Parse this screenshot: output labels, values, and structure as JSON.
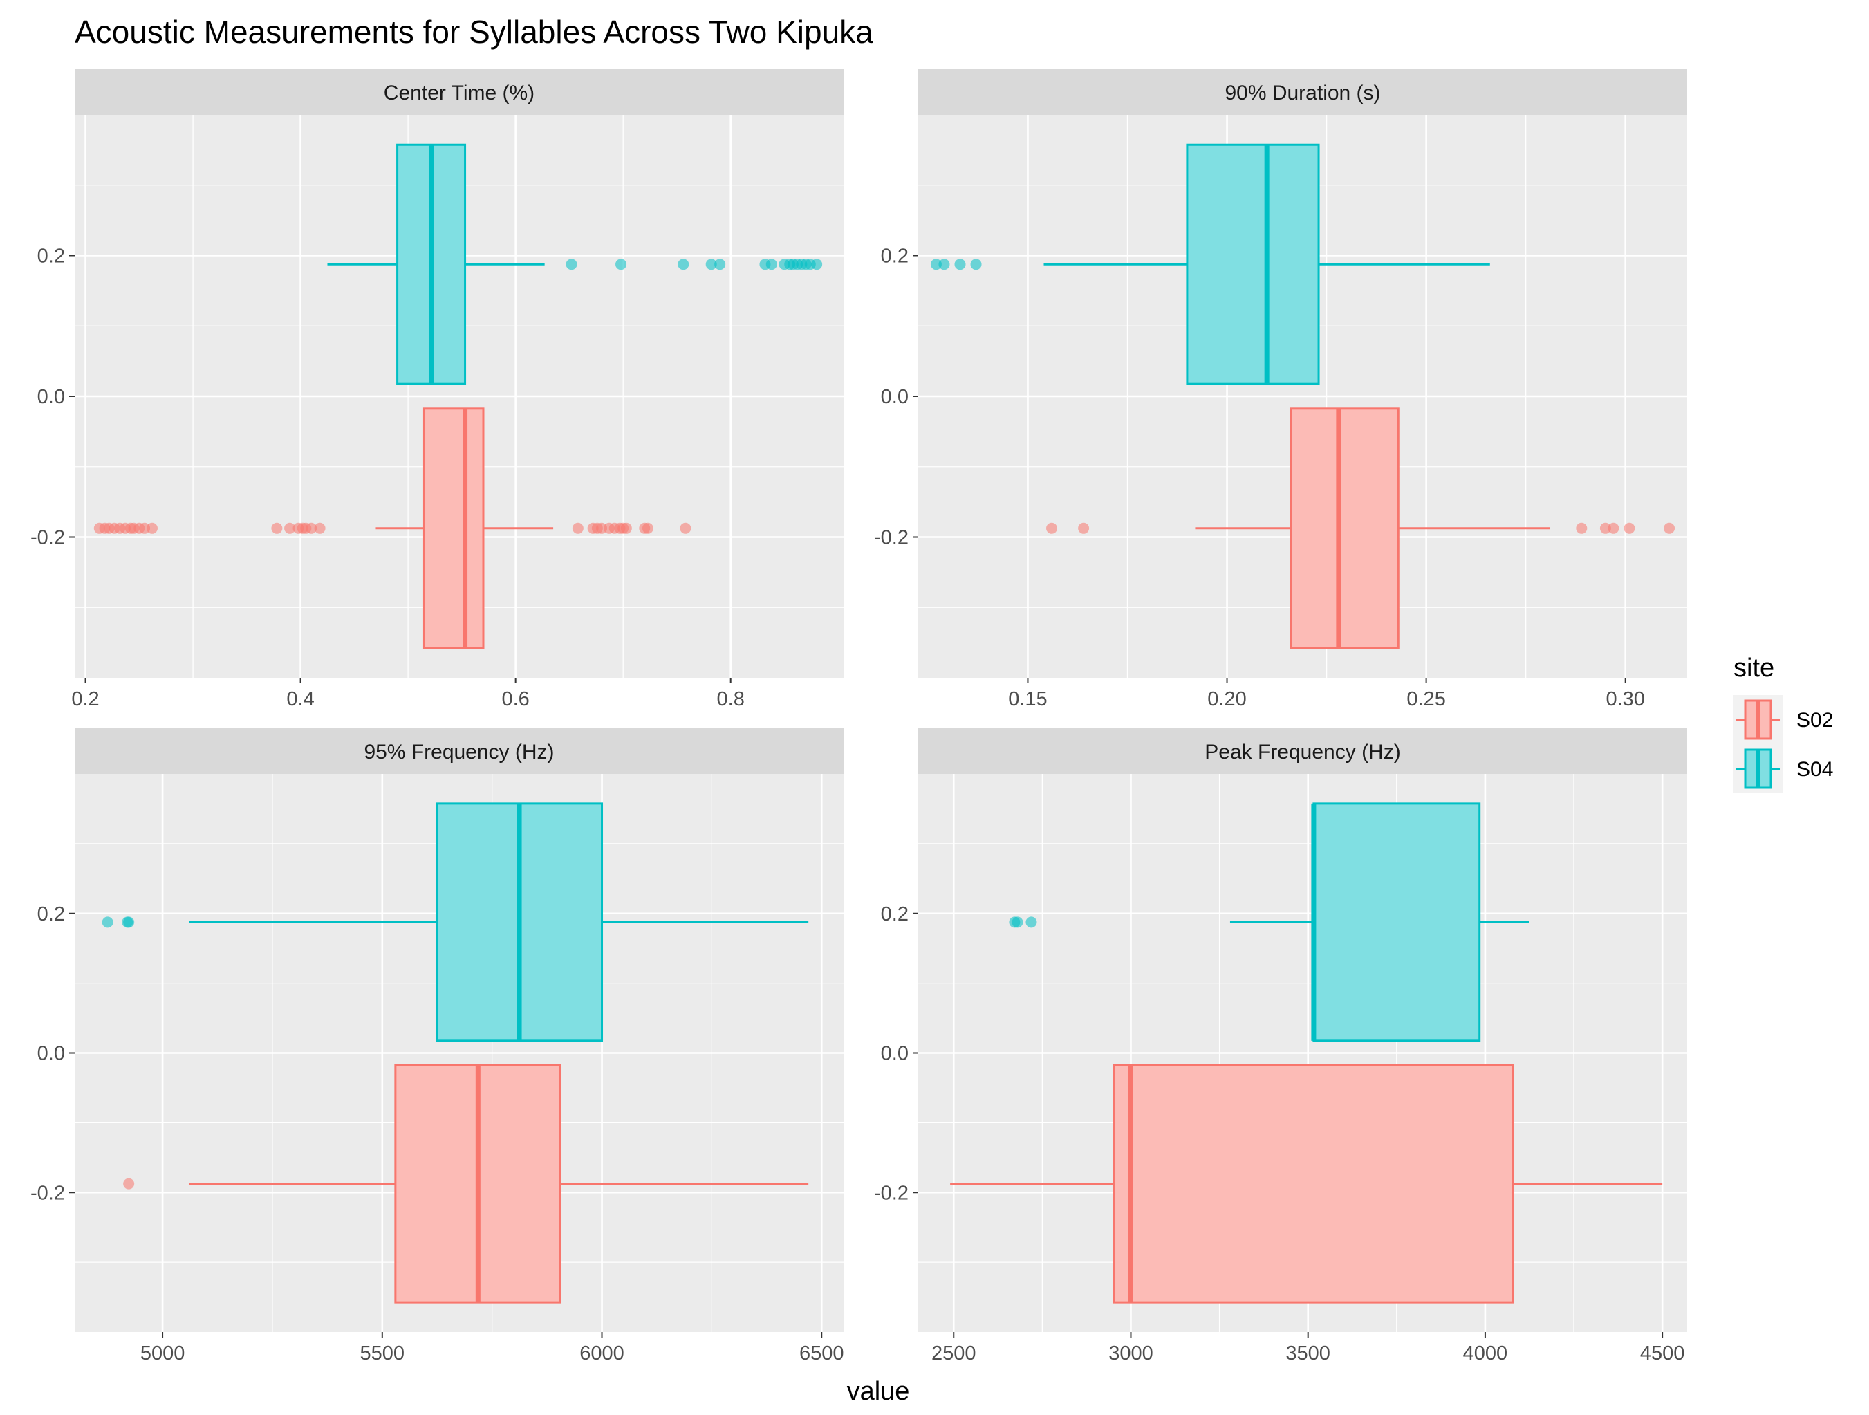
{
  "title": "Acoustic Measurements for Syllables Across Two Kipuka",
  "xlabel": "value",
  "legend": {
    "title": "site",
    "position": "right",
    "entries": [
      {
        "name": "S02",
        "color": "#F8766D"
      },
      {
        "name": "S04",
        "color": "#00BFC4"
      }
    ]
  },
  "chart_data": [
    {
      "type": "boxplot",
      "facet": "Center Time (%)",
      "xlim": [
        0.19,
        0.905
      ],
      "x_ticks": [
        0.2,
        0.4,
        0.6,
        0.8
      ],
      "x_tick_labels": [
        "0.2",
        "0.4",
        "0.6",
        "0.8"
      ],
      "ylim": [
        -0.4,
        0.4
      ],
      "y_ticks": [
        -0.2,
        0.0,
        0.2
      ],
      "y_tick_labels": [
        "-0.2",
        "0.0",
        "0.2"
      ],
      "grid": true,
      "series": [
        {
          "name": "S02",
          "y": -0.1875,
          "min": 0.47,
          "q1": 0.515,
          "median": 0.553,
          "q3": 0.57,
          "max": 0.635,
          "outliers": [
            0.213,
            0.218,
            0.222,
            0.227,
            0.232,
            0.237,
            0.242,
            0.245,
            0.25,
            0.255,
            0.262,
            0.378,
            0.39,
            0.398,
            0.402,
            0.405,
            0.41,
            0.418,
            0.658,
            0.672,
            0.676,
            0.68,
            0.687,
            0.692,
            0.697,
            0.7,
            0.703,
            0.72,
            0.723,
            0.758
          ]
        },
        {
          "name": "S04",
          "y": 0.1875,
          "min": 0.425,
          "q1": 0.49,
          "median": 0.522,
          "q3": 0.553,
          "max": 0.627,
          "outliers": [
            0.652,
            0.698,
            0.756,
            0.782,
            0.79,
            0.832,
            0.838,
            0.85,
            0.855,
            0.858,
            0.862,
            0.866,
            0.87,
            0.874,
            0.88
          ]
        }
      ]
    },
    {
      "type": "boxplot",
      "facet": "90% Duration (s)",
      "xlim": [
        0.1225,
        0.3155
      ],
      "x_ticks": [
        0.15,
        0.2,
        0.25,
        0.3
      ],
      "x_tick_labels": [
        "0.15",
        "0.20",
        "0.25",
        "0.30"
      ],
      "ylim": [
        -0.4,
        0.4
      ],
      "y_ticks": [
        -0.2,
        0.0,
        0.2
      ],
      "y_tick_labels": [
        "-0.2",
        "0.0",
        "0.2"
      ],
      "grid": true,
      "series": [
        {
          "name": "S02",
          "y": -0.1875,
          "min": 0.192,
          "q1": 0.216,
          "median": 0.228,
          "q3": 0.243,
          "max": 0.281,
          "outliers": [
            0.156,
            0.164,
            0.289,
            0.295,
            0.297,
            0.301,
            0.311
          ]
        },
        {
          "name": "S04",
          "y": 0.1875,
          "min": 0.154,
          "q1": 0.19,
          "median": 0.21,
          "q3": 0.223,
          "max": 0.266,
          "outliers": [
            0.127,
            0.129,
            0.133,
            0.137
          ]
        }
      ]
    },
    {
      "type": "boxplot",
      "facet": "95% Frequency (Hz)",
      "xlim": [
        4800,
        6550
      ],
      "x_ticks": [
        5000,
        5500,
        6000,
        6500
      ],
      "x_tick_labels": [
        "5000",
        "5500",
        "6000",
        "6500"
      ],
      "ylim": [
        -0.4,
        0.4
      ],
      "y_ticks": [
        -0.2,
        0.0,
        0.2
      ],
      "y_tick_labels": [
        "-0.2",
        "0.0",
        "0.2"
      ],
      "grid": true,
      "series": [
        {
          "name": "S02",
          "y": -0.1875,
          "min": 5060,
          "q1": 5530,
          "median": 5718,
          "q3": 5905,
          "max": 6470,
          "outliers": [
            4923
          ]
        },
        {
          "name": "S04",
          "y": 0.1875,
          "min": 5060,
          "q1": 5625,
          "median": 5812,
          "q3": 6000,
          "max": 6470,
          "outliers": [
            4875,
            4920,
            4923
          ]
        }
      ]
    },
    {
      "type": "boxplot",
      "facet": "Peak Frequency (Hz)",
      "xlim": [
        2400,
        4570
      ],
      "x_ticks": [
        2500,
        3000,
        3500,
        4000,
        4500
      ],
      "x_tick_labels": [
        "2500",
        "3000",
        "3500",
        "4000",
        "4500"
      ],
      "ylim": [
        -0.4,
        0.4
      ],
      "y_ticks": [
        -0.2,
        0.0,
        0.2
      ],
      "y_tick_labels": [
        "-0.2",
        "0.0",
        "0.2"
      ],
      "grid": true,
      "series": [
        {
          "name": "S02",
          "y": -0.1875,
          "min": 2490,
          "q1": 2953,
          "median": 3000,
          "q3": 4078,
          "max": 4500,
          "outliers": []
        },
        {
          "name": "S04",
          "y": 0.1875,
          "min": 3280,
          "q1": 3516,
          "median": 3516,
          "q3": 3984,
          "max": 4125,
          "outliers": [
            2672,
            2680,
            2719
          ]
        }
      ]
    }
  ]
}
